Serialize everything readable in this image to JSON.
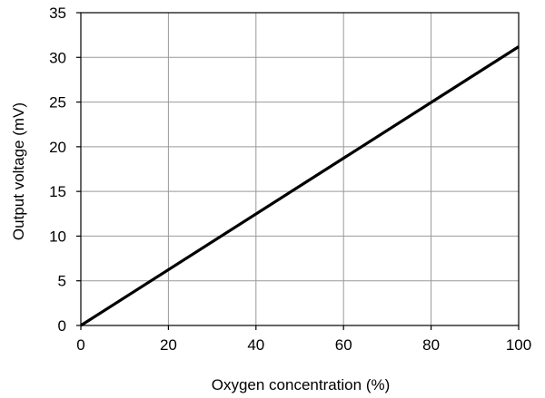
{
  "chart_data": {
    "type": "line",
    "xlabel": "Oxygen concentration (%)",
    "ylabel": "Output voltage (mV)",
    "xlim": [
      0,
      100
    ],
    "ylim": [
      0,
      35
    ],
    "xticks": [
      0,
      20,
      40,
      60,
      80,
      100
    ],
    "yticks": [
      0,
      5,
      10,
      15,
      20,
      25,
      30,
      35
    ],
    "grid": true,
    "legend": "none",
    "series": [
      {
        "x": [
          0,
          100
        ],
        "y": [
          0,
          31.2
        ]
      }
    ],
    "colors": {
      "line": "#000000",
      "grid": "#999999",
      "frame": "#000000"
    }
  }
}
